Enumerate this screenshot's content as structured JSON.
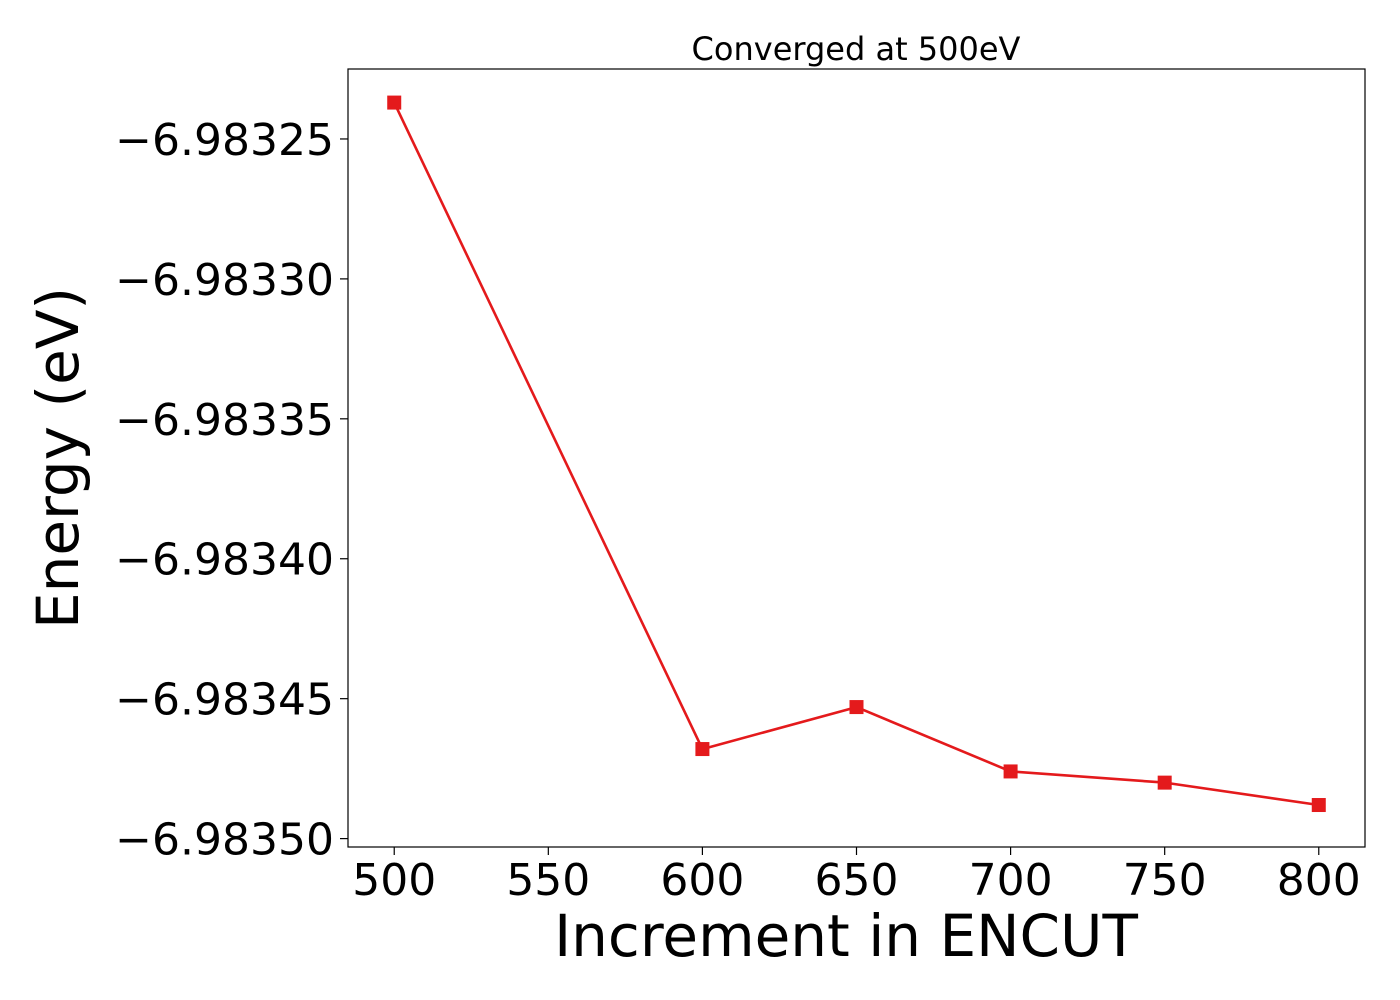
{
  "chart_data": {
    "type": "line",
    "title": "Converged at 500eV",
    "xlabel": "Increment in ENCUT",
    "ylabel": "Energy (eV)",
    "x": [
      500,
      600,
      650,
      700,
      750,
      800
    ],
    "series": [
      {
        "values": [
          -6.983237,
          -6.983468,
          -6.983453,
          -6.983476,
          -6.98348,
          -6.983488
        ],
        "color": "#e41a1c",
        "marker": "square"
      }
    ],
    "xticks": [
      500,
      550,
      600,
      650,
      700,
      750,
      800
    ],
    "xtick_labels": [
      "500",
      "550",
      "600",
      "650",
      "700",
      "750",
      "800"
    ],
    "yticks": [
      -6.98325,
      -6.9833,
      -6.98335,
      -6.9834,
      -6.98345,
      -6.9835
    ],
    "ytick_labels": [
      "−6.98325",
      "−6.98330",
      "−6.98335",
      "−6.98340",
      "−6.98345",
      "−6.98350"
    ],
    "xlim": [
      485,
      815
    ],
    "ylim": [
      -6.983503,
      -6.983225
    ],
    "grid": false,
    "legend": false
  }
}
